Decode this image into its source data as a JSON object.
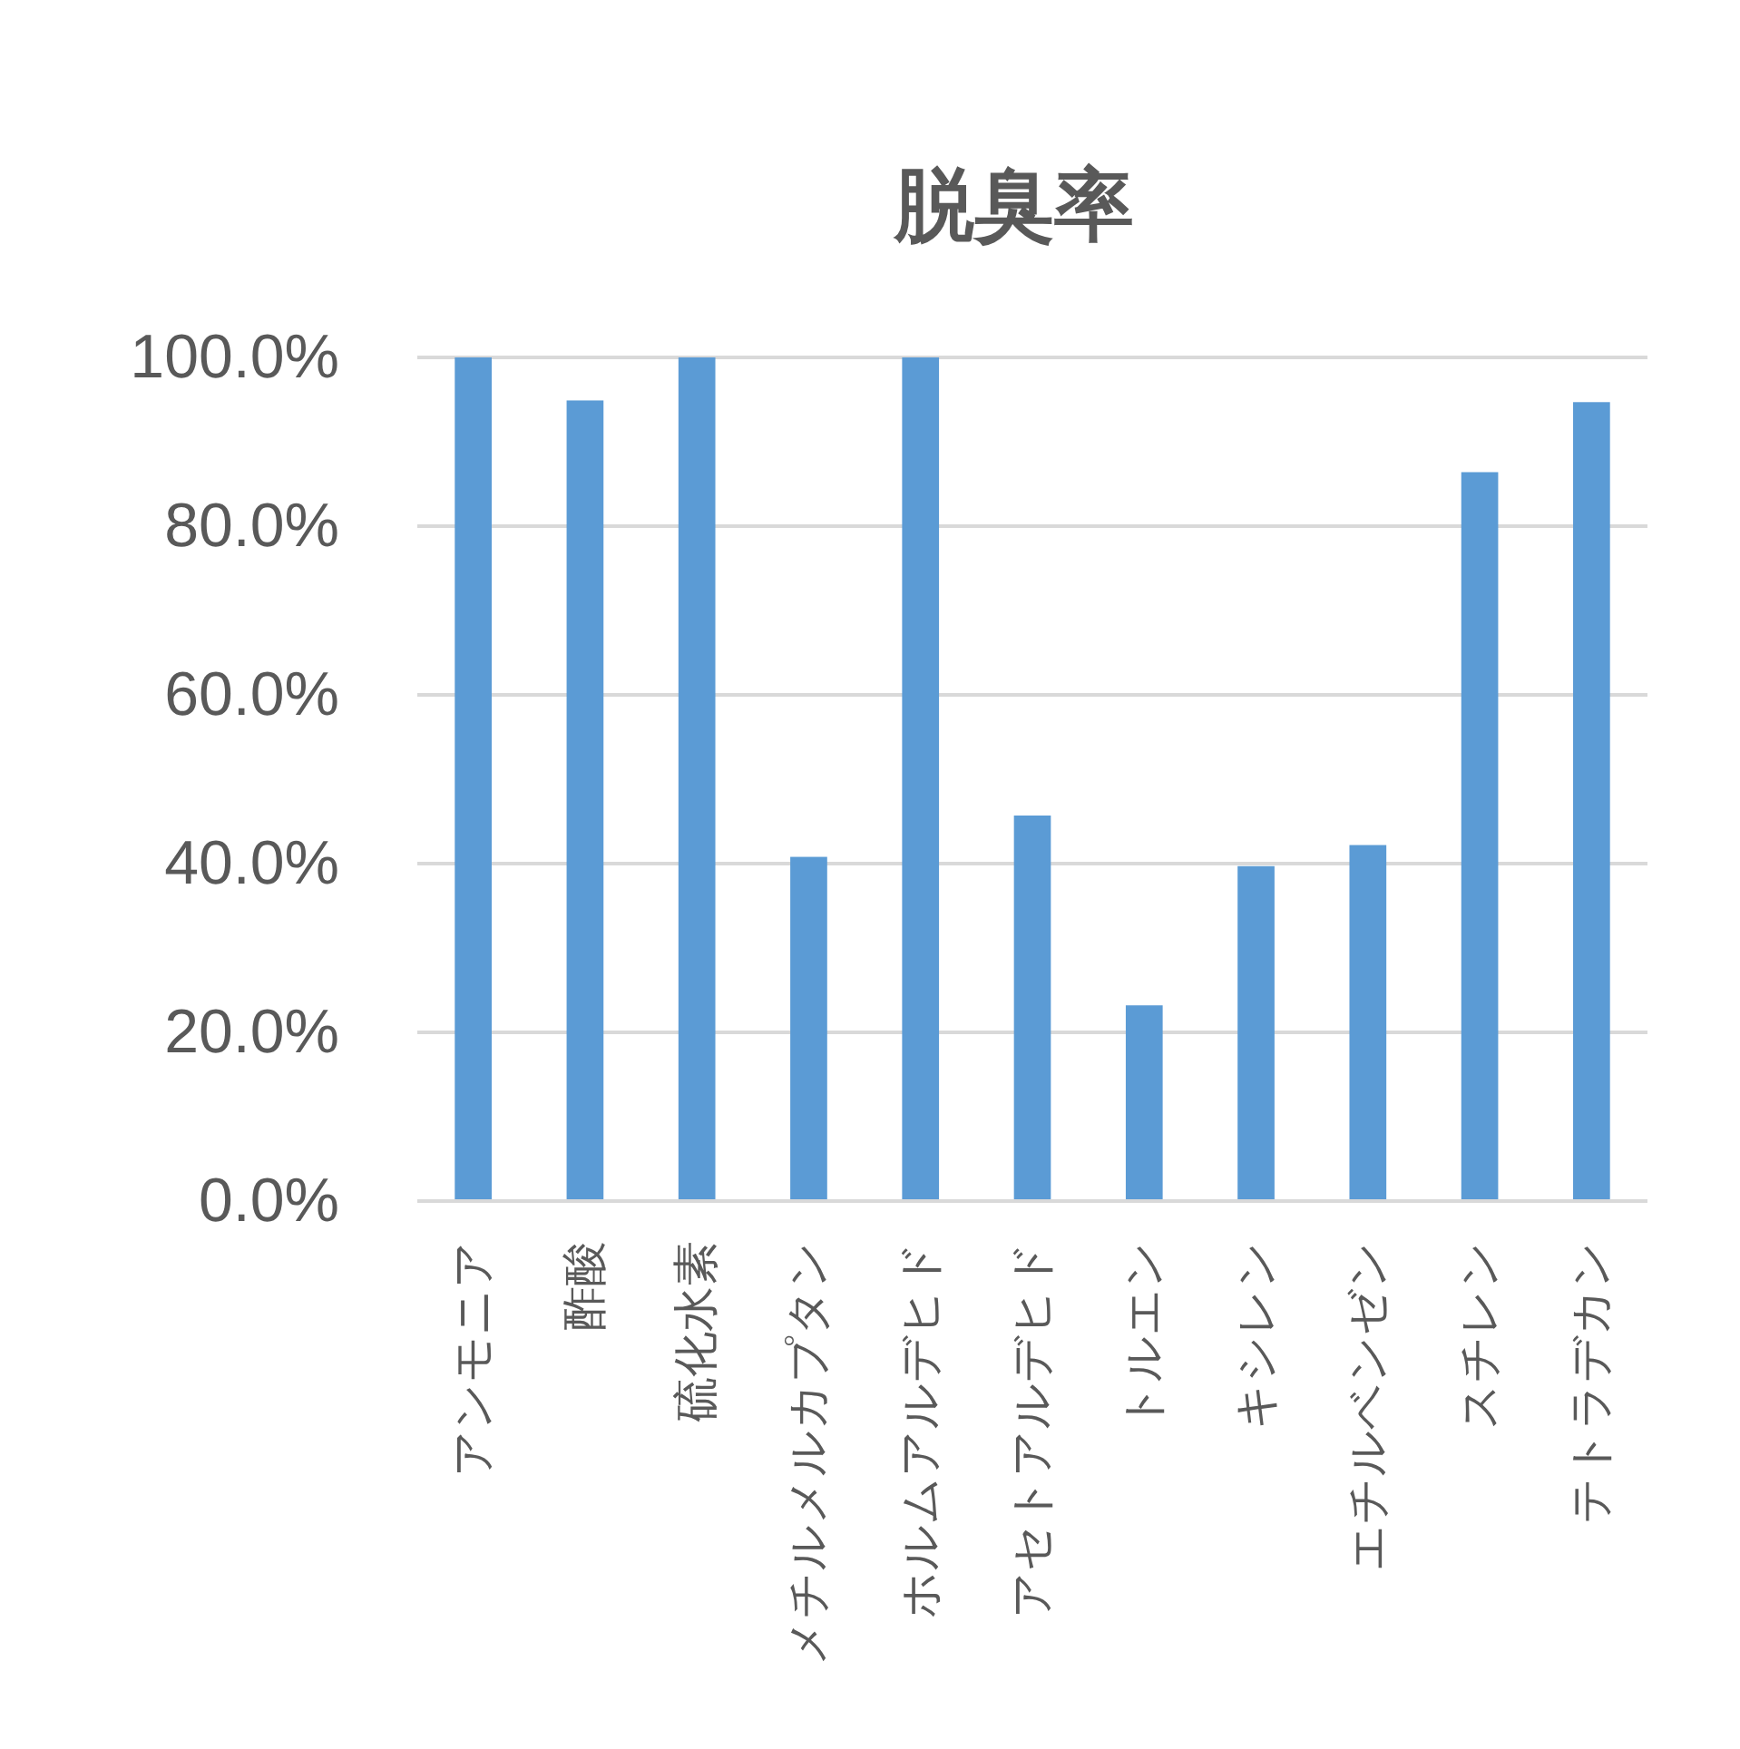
{
  "chart_data": {
    "type": "bar",
    "title": "脱臭率",
    "categories": [
      "アンモニア",
      "酢酸",
      "硫化水素",
      "メチルメルカプタン",
      "ホルムアルデヒド",
      "アセトアルデヒド",
      "トルエン",
      "キシレン",
      "エチルベンゼン",
      "スチレン",
      "テトラデカン"
    ],
    "values": [
      100,
      94.9,
      100,
      40.8,
      100,
      45.7,
      23.2,
      39.7,
      42.2,
      86.4,
      94.7
    ],
    "color": "#5b9bd5",
    "ylim": [
      0,
      100
    ],
    "yticks": [
      {
        "value": 0,
        "label": "0.0%"
      },
      {
        "value": 20,
        "label": "20.0%"
      },
      {
        "value": 40,
        "label": "40.0%"
      },
      {
        "value": 60,
        "label": "60.0%"
      },
      {
        "value": 80,
        "label": "80.0%"
      },
      {
        "value": 100,
        "label": "100.0%"
      }
    ],
    "grid": "y"
  }
}
